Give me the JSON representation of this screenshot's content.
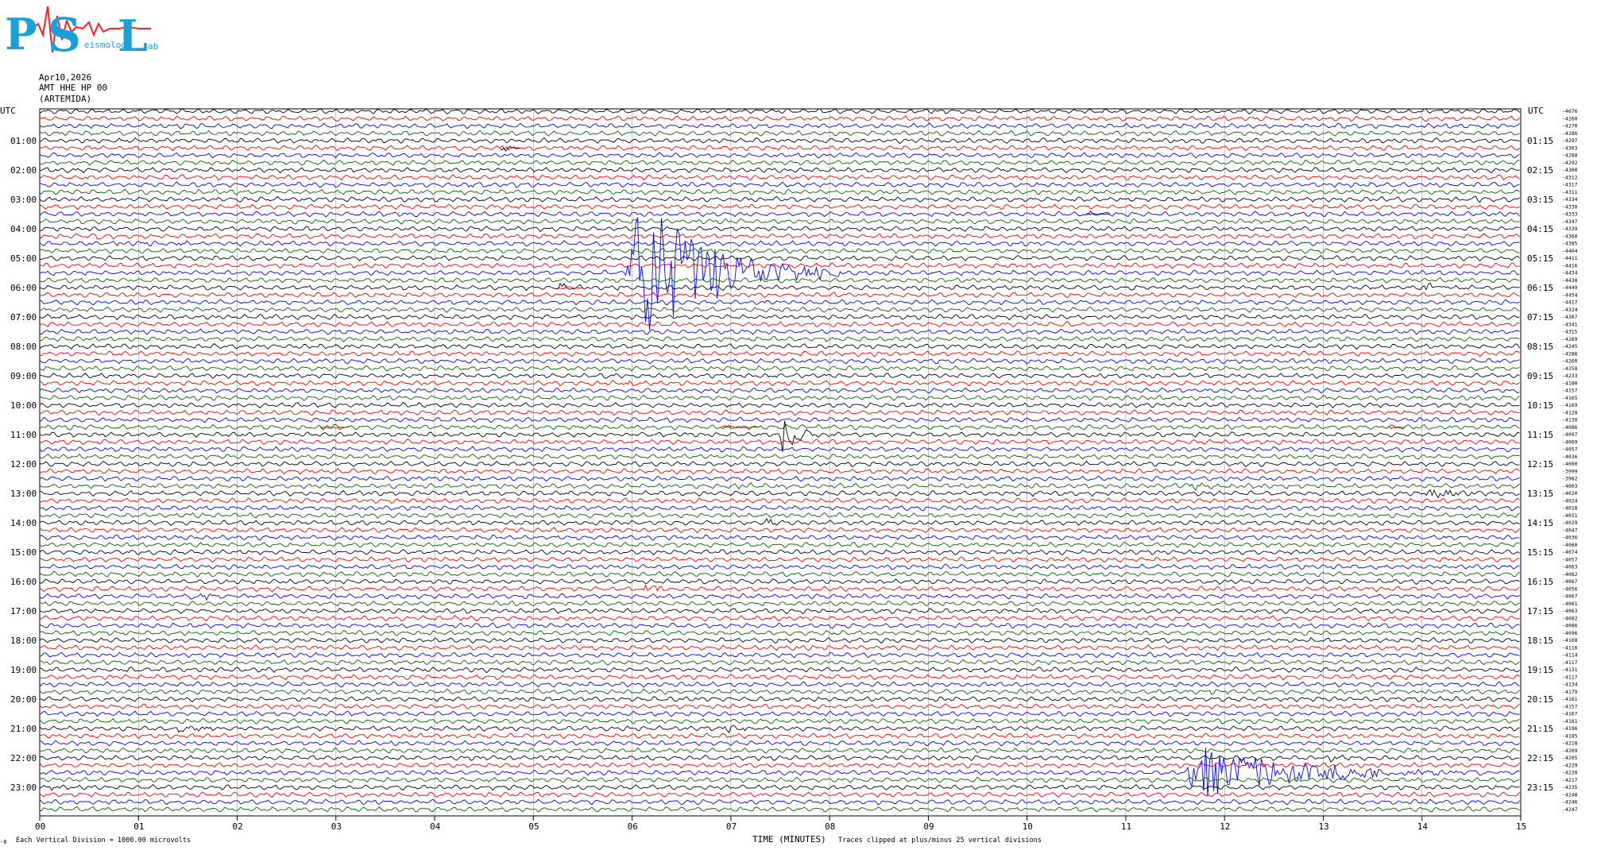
{
  "logo": {
    "letters": [
      "P",
      "S",
      "L"
    ],
    "tagline_visible": "eismology",
    "tagline_tail": "ab",
    "colors": {
      "letters": "#1aa0d8",
      "squiggle": "#ff2020"
    }
  },
  "header": {
    "date": "Apr10,2026",
    "station": "AMT HHE HP 00",
    "name": "(ARTEMIDA)"
  },
  "axis_labels": {
    "utc_left": "UTC",
    "utc_right": "UTC",
    "x_title": "TIME (MINUTES)",
    "scale_note": "Each Vertical Division = 1000.00 microvolts",
    "clip_note": "Traces clipped at plus/minus 25 vertical divisions",
    "corner_mark": "-8"
  },
  "chart_data": {
    "type": "line",
    "title": "",
    "xlabel": "TIME (MINUTES)",
    "ylabel": "UTC",
    "xlim": [
      0,
      15
    ],
    "x_ticks": [
      "00",
      "01",
      "02",
      "03",
      "04",
      "05",
      "06",
      "07",
      "08",
      "09",
      "10",
      "11",
      "12",
      "13",
      "14",
      "15"
    ],
    "y_ticks_left": [
      "01:00",
      "02:00",
      "03:00",
      "04:00",
      "05:00",
      "06:00",
      "07:00",
      "08:00",
      "09:00",
      "10:00",
      "11:00",
      "12:00",
      "13:00",
      "14:00",
      "15:00",
      "16:00",
      "17:00",
      "18:00",
      "19:00",
      "20:00",
      "21:00",
      "22:00",
      "23:00"
    ],
    "y_ticks_right": [
      "01:15",
      "02:15",
      "03:15",
      "04:15",
      "05:15",
      "06:15",
      "07:15",
      "08:15",
      "09:15",
      "10:15",
      "11:15",
      "12:15",
      "13:15",
      "14:15",
      "15:15",
      "16:15",
      "17:15",
      "18:15",
      "19:15",
      "20:15",
      "21:15",
      "22:15",
      "23:15"
    ],
    "trace_minutes": 15,
    "trace_count": 96,
    "trace_color_cycle": [
      "#000000",
      "#ff0000",
      "#0000ff",
      "#006400"
    ],
    "grid": true,
    "trace_offsets": [
      "-4676",
      "-4260",
      "-4270",
      "-4286",
      "-4297",
      "-4303",
      "-4288",
      "-4292",
      "-4300",
      "-4312",
      "-4317",
      "-4311",
      "-4334",
      "-4330",
      "-4333",
      "-4347",
      "-4339",
      "-4360",
      "-4385",
      "-4404",
      "-4411",
      "-4416",
      "-4434",
      "-4438",
      "-4449",
      "-4454",
      "-4417",
      "-4324",
      "-4307",
      "-4341",
      "-4315",
      "-4269",
      "-4245",
      "-4286",
      "-4260",
      "-4258",
      "-4233",
      "-4180",
      "-4157",
      "-4165",
      "-4169",
      "-4128",
      "-4130",
      "-4086",
      "-4097",
      "-4069",
      "-4057",
      "-4036",
      "-4000",
      "-3999",
      "-3982",
      "-4003",
      "-4020",
      "-4024",
      "-4018",
      "-4031",
      "-4029",
      "-4047",
      "-4036",
      "-4060",
      "-4074",
      "-4057",
      "-4063",
      "-4082",
      "-4067",
      "-4056",
      "-4067",
      "-4061",
      "-4063",
      "-4082",
      "-4086",
      "-4096",
      "-4108",
      "-4116",
      "-4114",
      "-4117",
      "-4131",
      "-4117",
      "-4134",
      "-4179",
      "-4161",
      "-4157",
      "-4167",
      "-4181",
      "-4196",
      "-4185",
      "-4218",
      "-4209",
      "-4205",
      "-4229",
      "-4228",
      "-4217",
      "-4235",
      "-4248",
      "-4246",
      "-4247"
    ],
    "events": [
      {
        "trace": 5,
        "minute": 4.66,
        "duration": 0.22,
        "amplitude": 10,
        "color": "#000000"
      },
      {
        "trace": 10,
        "minute": 4.3,
        "duration": 0.9,
        "amplitude": 3,
        "color": "#0000ff"
      },
      {
        "trace": 10,
        "minute": 5.72,
        "duration": 0.15,
        "amplitude": 9,
        "color": "#0000ff"
      },
      {
        "trace": 12,
        "minute": 14.5,
        "duration": 0.5,
        "amplitude": 7,
        "color": "#000000"
      },
      {
        "trace": 14,
        "minute": 10.6,
        "duration": 0.25,
        "amplitude": 3,
        "color": "#000000"
      },
      {
        "trace": 17,
        "minute": 0.55,
        "duration": 0.25,
        "amplitude": 8,
        "color": "#ff0000"
      },
      {
        "trace": 18,
        "minute": 0.7,
        "duration": 1.2,
        "amplitude": 3,
        "color": "#0000ff"
      },
      {
        "trace": 20,
        "minute": 1.4,
        "duration": 0.35,
        "amplitude": 4,
        "color": "#000000"
      },
      {
        "trace": 22,
        "minute": 5.95,
        "duration": 2.2,
        "amplitude": 120,
        "color": "#0000ff"
      },
      {
        "trace": 24,
        "minute": 5.25,
        "duration": 0.25,
        "amplitude": 9,
        "color": "#ff0000"
      },
      {
        "trace": 24,
        "minute": 14.0,
        "duration": 0.45,
        "amplitude": 9,
        "color": "#000000"
      },
      {
        "trace": 30,
        "minute": 10.5,
        "duration": 0.8,
        "amplitude": 3,
        "color": "#0000ff"
      },
      {
        "trace": 37,
        "minute": 5.9,
        "duration": 0.4,
        "amplitude": 4,
        "color": "#ff0000"
      },
      {
        "trace": 38,
        "minute": 12.85,
        "duration": 0.15,
        "amplitude": 6,
        "color": "#0000ff"
      },
      {
        "trace": 43,
        "minute": 2.85,
        "duration": 0.3,
        "amplitude": 5,
        "color": "#ff0000"
      },
      {
        "trace": 43,
        "minute": 6.9,
        "duration": 0.4,
        "amplitude": 5,
        "color": "#ff0000"
      },
      {
        "trace": 43,
        "minute": 13.65,
        "duration": 0.2,
        "amplitude": 4,
        "color": "#ff0000"
      },
      {
        "trace": 44,
        "minute": 7.5,
        "duration": 0.5,
        "amplitude": 36,
        "color": "#000000"
      },
      {
        "trace": 51,
        "minute": 7.0,
        "duration": 1.5,
        "amplitude": 3,
        "color": "#006400"
      },
      {
        "trace": 51,
        "minute": 11.5,
        "duration": 2.0,
        "amplitude": 4,
        "color": "#006400"
      },
      {
        "trace": 52,
        "minute": 10.0,
        "duration": 0.7,
        "amplitude": 4,
        "color": "#000000"
      },
      {
        "trace": 52,
        "minute": 14.05,
        "duration": 0.9,
        "amplitude": 8,
        "color": "#000000"
      },
      {
        "trace": 55,
        "minute": 1.5,
        "duration": 0.3,
        "amplitude": 4,
        "color": "#006400"
      },
      {
        "trace": 56,
        "minute": 7.35,
        "duration": 0.25,
        "amplitude": 6,
        "color": "#000000"
      },
      {
        "trace": 65,
        "minute": 6.1,
        "duration": 0.6,
        "amplitude": 6,
        "color": "#ff0000"
      },
      {
        "trace": 66,
        "minute": 1.5,
        "duration": 0.9,
        "amplitude": 4,
        "color": "#0000ff"
      },
      {
        "trace": 73,
        "minute": 7.6,
        "duration": 0.8,
        "amplitude": 3,
        "color": "#ff0000"
      },
      {
        "trace": 79,
        "minute": 11.8,
        "duration": 0.5,
        "amplitude": 4,
        "color": "#006400"
      },
      {
        "trace": 79,
        "minute": 13.9,
        "duration": 0.8,
        "amplitude": 3,
        "color": "#006400"
      },
      {
        "trace": 84,
        "minute": 1.35,
        "duration": 0.7,
        "amplitude": 6,
        "color": "#000000"
      },
      {
        "trace": 84,
        "minute": 6.9,
        "duration": 1.0,
        "amplitude": 4,
        "color": "#000000"
      },
      {
        "trace": 88,
        "minute": 13.05,
        "duration": 0.4,
        "amplitude": 4,
        "color": "#000000"
      },
      {
        "trace": 90,
        "minute": 11.6,
        "duration": 3.2,
        "amplitude": 40,
        "color": "#0000ff"
      },
      {
        "trace": 92,
        "minute": 0.0,
        "duration": 0.45,
        "amplitude": 6,
        "color": "#000000"
      },
      {
        "trace": 94,
        "minute": 4.9,
        "duration": 0.15,
        "amplitude": 3,
        "color": "#0000ff"
      },
      {
        "trace": 95,
        "minute": 9.95,
        "duration": 0.15,
        "amplitude": 4,
        "color": "#006400"
      }
    ]
  }
}
